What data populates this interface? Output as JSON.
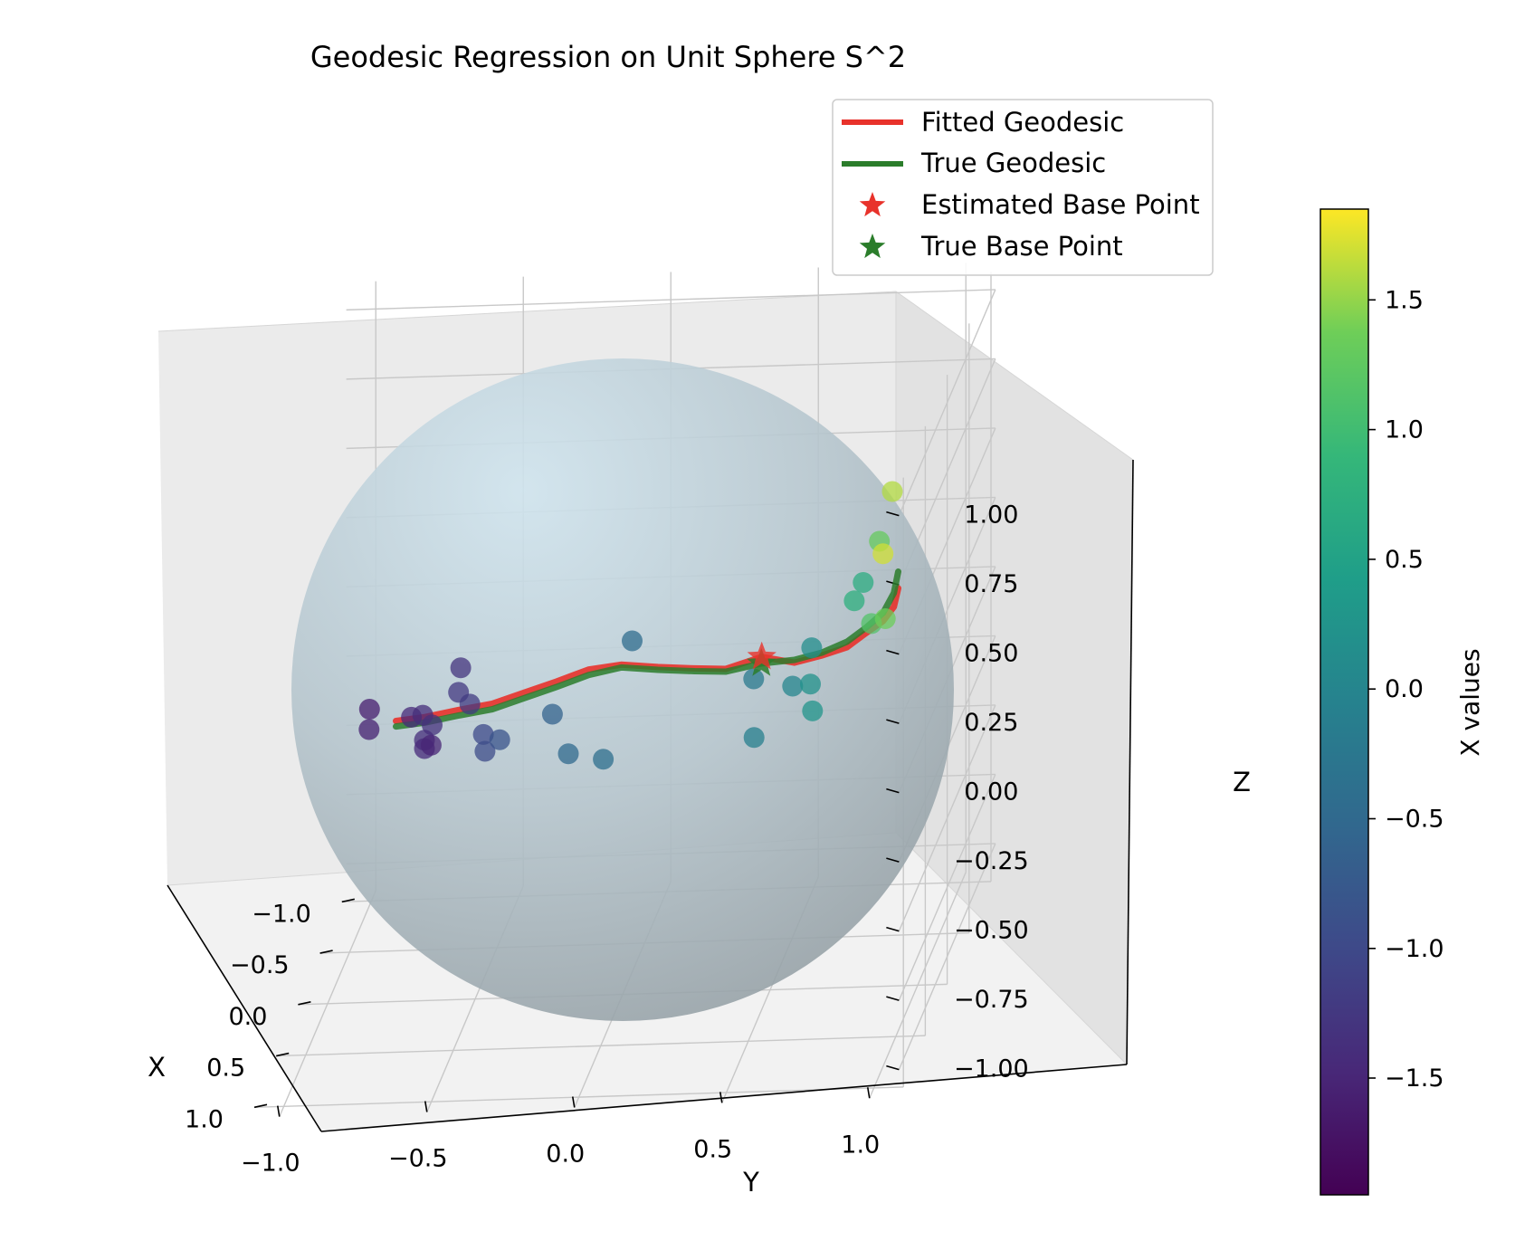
{
  "chart_data": {
    "type": "scatter",
    "projection": "3d",
    "title": "Geodesic Regression on Unit Sphere S^2",
    "xlabel": "X",
    "ylabel": "Y",
    "zlabel": "Z",
    "xlim": [
      -1.1,
      1.1
    ],
    "ylim": [
      -1.1,
      1.1
    ],
    "zlim": [
      -1.1,
      1.1
    ],
    "x_ticks": [
      "−1.0",
      "−0.5",
      "0.0",
      "0.5",
      "1.0"
    ],
    "y_ticks": [
      "−1.0",
      "−0.5",
      "0.0",
      "0.5",
      "1.0"
    ],
    "z_ticks": [
      "−1.00",
      "−0.75",
      "−0.50",
      "−0.25",
      "0.00",
      "0.25",
      "0.50",
      "0.75",
      "1.00"
    ],
    "grid": true,
    "sphere": {
      "radius": 1,
      "color": "#a9c1cc"
    },
    "legend": {
      "placement": "upper right",
      "entries": [
        {
          "label": "Fitted Geodesic",
          "kind": "line",
          "color": "#e8322b"
        },
        {
          "label": "True Geodesic",
          "kind": "line",
          "color": "#2b7d2b"
        },
        {
          "label": "Estimated Base Point",
          "kind": "star",
          "color": "#e8322b"
        },
        {
          "label": "True Base Point",
          "kind": "star",
          "color": "#2b7d2b"
        }
      ]
    },
    "colorbar": {
      "label": "X values",
      "colormap": "viridis",
      "range": [
        -1.95,
        1.85
      ],
      "ticks": [
        "−1.5",
        "−1.0",
        "−0.5",
        "0.0",
        "0.5",
        "1.0",
        "1.5"
      ],
      "tick_values": [
        -1.5,
        -1.0,
        -0.5,
        0.0,
        0.5,
        1.0,
        1.5
      ]
    },
    "base_points": {
      "estimated": [
        0.73,
        0.58,
        0.37
      ],
      "true": [
        0.74,
        0.58,
        0.35
      ]
    },
    "geodesics": {
      "fitted": [
        [
          0.73,
          -0.66,
          0.18
        ],
        [
          0.81,
          -0.55,
          0.22
        ],
        [
          0.86,
          -0.43,
          0.26
        ],
        [
          0.89,
          -0.31,
          0.29
        ],
        [
          0.9,
          -0.2,
          0.33
        ],
        [
          0.91,
          -0.09,
          0.37
        ],
        [
          0.91,
          0.02,
          0.41
        ],
        [
          0.9,
          0.13,
          0.42
        ],
        [
          0.88,
          0.25,
          0.4
        ],
        [
          0.85,
          0.37,
          0.38
        ],
        [
          0.81,
          0.47,
          0.36
        ],
        [
          0.73,
          0.58,
          0.37
        ],
        [
          0.66,
          0.68,
          0.32
        ],
        [
          0.57,
          0.76,
          0.31
        ],
        [
          0.47,
          0.83,
          0.3
        ],
        [
          0.36,
          0.88,
          0.31
        ],
        [
          0.25,
          0.92,
          0.31
        ],
        [
          0.14,
          0.94,
          0.32
        ],
        [
          0.04,
          0.94,
          0.35
        ]
      ],
      "true": [
        [
          0.73,
          -0.66,
          0.16
        ],
        [
          0.81,
          -0.55,
          0.2
        ],
        [
          0.86,
          -0.43,
          0.24
        ],
        [
          0.89,
          -0.31,
          0.27
        ],
        [
          0.9,
          -0.2,
          0.31
        ],
        [
          0.91,
          -0.09,
          0.35
        ],
        [
          0.91,
          0.02,
          0.39
        ],
        [
          0.9,
          0.13,
          0.41
        ],
        [
          0.88,
          0.25,
          0.39
        ],
        [
          0.85,
          0.37,
          0.37
        ],
        [
          0.81,
          0.47,
          0.35
        ],
        [
          0.74,
          0.58,
          0.35
        ],
        [
          0.66,
          0.68,
          0.33
        ],
        [
          0.57,
          0.76,
          0.32
        ],
        [
          0.47,
          0.83,
          0.32
        ],
        [
          0.36,
          0.88,
          0.33
        ],
        [
          0.25,
          0.92,
          0.34
        ],
        [
          0.14,
          0.94,
          0.37
        ],
        [
          0.04,
          0.94,
          0.41
        ]
      ]
    },
    "points": [
      {
        "x": 0.66,
        "y": -0.76,
        "z": 0.2,
        "c": -1.6
      },
      {
        "x": 0.67,
        "y": -0.76,
        "z": 0.13,
        "c": -1.55
      },
      {
        "x": 0.78,
        "y": -0.6,
        "z": 0.21,
        "c": -1.45
      },
      {
        "x": 0.79,
        "y": -0.56,
        "z": 0.22,
        "c": -1.4
      },
      {
        "x": 0.78,
        "y": -0.53,
        "z": 0.18,
        "c": -1.35
      },
      {
        "x": 0.82,
        "y": -0.55,
        "z": 0.14,
        "c": -1.4
      },
      {
        "x": 0.82,
        "y": -0.55,
        "z": 0.11,
        "c": -1.45
      },
      {
        "x": 0.87,
        "y": -0.52,
        "z": 0.14,
        "c": -1.5
      },
      {
        "x": 0.8,
        "y": -0.43,
        "z": 0.39,
        "c": -1.3
      },
      {
        "x": 0.85,
        "y": -0.43,
        "z": 0.32,
        "c": -1.25
      },
      {
        "x": 0.86,
        "y": -0.39,
        "z": 0.28,
        "c": -1.2
      },
      {
        "x": 0.89,
        "y": -0.34,
        "z": 0.18,
        "c": -1.0
      },
      {
        "x": 0.92,
        "y": -0.33,
        "z": 0.13,
        "c": -0.95
      },
      {
        "x": 0.92,
        "y": -0.28,
        "z": 0.17,
        "c": -0.85
      },
      {
        "x": 0.93,
        "y": -0.1,
        "z": 0.26,
        "c": -0.6
      },
      {
        "x": 0.97,
        "y": -0.04,
        "z": 0.13,
        "c": -0.5
      },
      {
        "x": 0.86,
        "y": 0.16,
        "z": 0.49,
        "c": -0.45
      },
      {
        "x": 0.98,
        "y": 0.08,
        "z": 0.11,
        "c": -0.4
      },
      {
        "x": 0.78,
        "y": 0.56,
        "z": 0.31,
        "c": -0.2
      },
      {
        "x": 0.84,
        "y": 0.57,
        "z": 0.12,
        "c": -0.1
      },
      {
        "x": 0.7,
        "y": 0.68,
        "z": 0.25,
        "c": 0.0
      },
      {
        "x": 0.6,
        "y": 0.73,
        "z": 0.35,
        "c": 0.15
      },
      {
        "x": 0.63,
        "y": 0.73,
        "z": 0.23,
        "c": 0.2
      },
      {
        "x": 0.65,
        "y": 0.74,
        "z": 0.14,
        "c": 0.25
      },
      {
        "x": 0.3,
        "y": 0.86,
        "z": 0.47,
        "c": 0.7
      },
      {
        "x": 0.37,
        "y": 0.84,
        "z": 0.43,
        "c": 0.75
      },
      {
        "x": 0.2,
        "y": 0.9,
        "z": 0.58,
        "c": 1.3
      },
      {
        "x": 0.38,
        "y": 0.9,
        "z": 0.35,
        "c": 1.15
      },
      {
        "x": 0.2,
        "y": 0.92,
        "z": 0.3,
        "c": 1.35
      },
      {
        "x": 0.05,
        "y": 0.89,
        "z": 0.48,
        "c": 1.7
      },
      {
        "x": 0.04,
        "y": 0.92,
        "z": 0.7,
        "c": 1.6
      }
    ]
  }
}
